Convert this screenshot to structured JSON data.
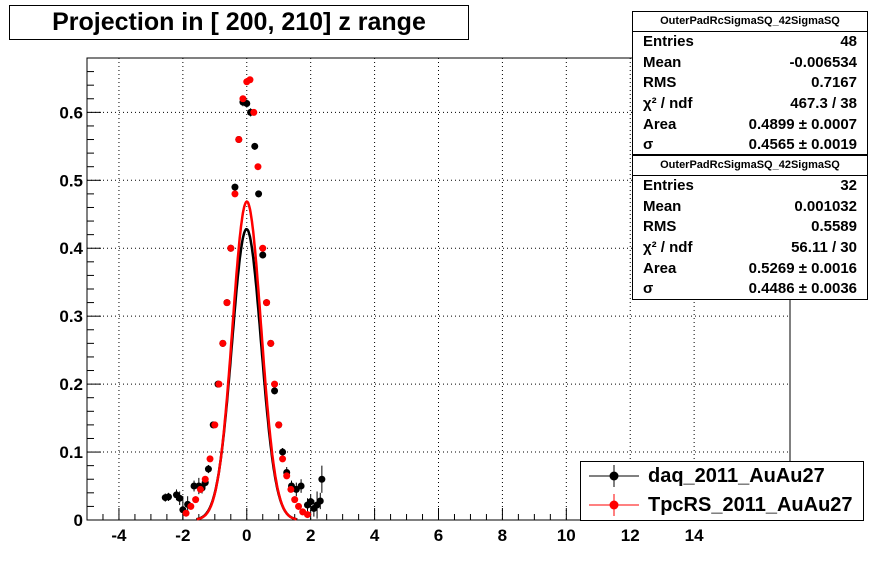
{
  "title": "Projection in [ 200, 210] z range",
  "stats_boxes": [
    {
      "header": "OuterPadRcSigmaSQ_42SigmaSQ",
      "rows": [
        {
          "key": "Entries",
          "value": "48"
        },
        {
          "key": "Mean",
          "value": "-0.006534"
        },
        {
          "key": "RMS",
          "value": "0.7167"
        },
        {
          "key": "χ² / ndf",
          "value": "467.3 / 38"
        },
        {
          "key": "Area",
          "value": "0.4899 ± 0.0007"
        },
        {
          "key": "σ",
          "value": "0.4565 ± 0.0019"
        }
      ]
    },
    {
      "header": "OuterPadRcSigmaSQ_42SigmaSQ",
      "rows": [
        {
          "key": "Entries",
          "value": "32"
        },
        {
          "key": "Mean",
          "value": "0.001032"
        },
        {
          "key": "RMS",
          "value": "0.5589"
        },
        {
          "key": "χ² / ndf",
          "value": "56.11 / 30"
        },
        {
          "key": "Area",
          "value": "0.5269 ± 0.0016"
        },
        {
          "key": "σ",
          "value": "0.4486 ± 0.0036"
        }
      ]
    }
  ],
  "legend": [
    {
      "label": "daq_2011_AuAu27",
      "color": "#000000"
    },
    {
      "label": "TpcRS_2011_AuAu27",
      "color": "#ff0000"
    }
  ],
  "chart_data": {
    "type": "scatter",
    "xlim": [
      -5,
      17
    ],
    "ylim": [
      0,
      0.68
    ],
    "x_ticks": [
      -4,
      -2,
      0,
      2,
      4,
      6,
      8,
      10,
      12,
      14
    ],
    "y_ticks": [
      0,
      0.1,
      0.2,
      0.3,
      0.4,
      0.5,
      0.6
    ],
    "grid": true,
    "legend_position": "bottom-right",
    "series": [
      {
        "name": "daq_2011_AuAu27",
        "color": "#000000",
        "points": [
          {
            "x": -2.55,
            "y": 0.033,
            "e": 0.006
          },
          {
            "x": -2.45,
            "y": 0.034,
            "e": 0.006
          },
          {
            "x": -2.2,
            "y": 0.037,
            "e": 0.008
          },
          {
            "x": -2.1,
            "y": 0.032,
            "e": 0.01
          },
          {
            "x": -2.0,
            "y": 0.015,
            "e": 0.02
          },
          {
            "x": -1.85,
            "y": 0.023,
            "e": 0.012
          },
          {
            "x": -1.65,
            "y": 0.05,
            "e": 0.008
          },
          {
            "x": -1.5,
            "y": 0.05,
            "e": 0.012
          },
          {
            "x": -1.4,
            "y": 0.047,
            "e": 0.008
          },
          {
            "x": -1.3,
            "y": 0.055,
            "e": 0.006
          },
          {
            "x": -1.2,
            "y": 0.075,
            "e": 0.006
          },
          {
            "x": -1.05,
            "y": 0.14,
            "e": 0.005
          },
          {
            "x": -0.9,
            "y": 0.2,
            "e": 0.005
          },
          {
            "x": -0.75,
            "y": 0.26,
            "e": 0.005
          },
          {
            "x": -0.62,
            "y": 0.32,
            "e": 0.005
          },
          {
            "x": -0.5,
            "y": 0.4,
            "e": 0.005
          },
          {
            "x": -0.37,
            "y": 0.49,
            "e": 0.005
          },
          {
            "x": -0.25,
            "y": 0.56,
            "e": 0.005
          },
          {
            "x": -0.12,
            "y": 0.615,
            "e": 0.006
          },
          {
            "x": 0.0,
            "y": 0.613,
            "e": 0.006
          },
          {
            "x": 0.12,
            "y": 0.6,
            "e": 0.006
          },
          {
            "x": 0.25,
            "y": 0.55,
            "e": 0.005
          },
          {
            "x": 0.37,
            "y": 0.48,
            "e": 0.005
          },
          {
            "x": 0.5,
            "y": 0.39,
            "e": 0.005
          },
          {
            "x": 0.62,
            "y": 0.32,
            "e": 0.005
          },
          {
            "x": 0.75,
            "y": 0.26,
            "e": 0.005
          },
          {
            "x": 0.87,
            "y": 0.19,
            "e": 0.005
          },
          {
            "x": 1.0,
            "y": 0.14,
            "e": 0.005
          },
          {
            "x": 1.12,
            "y": 0.1,
            "e": 0.006
          },
          {
            "x": 1.25,
            "y": 0.07,
            "e": 0.008
          },
          {
            "x": 1.4,
            "y": 0.05,
            "e": 0.008
          },
          {
            "x": 1.55,
            "y": 0.045,
            "e": 0.01
          },
          {
            "x": 1.7,
            "y": 0.05,
            "e": 0.01
          },
          {
            "x": 1.9,
            "y": 0.022,
            "e": 0.01
          },
          {
            "x": 2.0,
            "y": 0.027,
            "e": 0.01
          },
          {
            "x": 2.1,
            "y": 0.017,
            "e": 0.012
          },
          {
            "x": 2.2,
            "y": 0.022,
            "e": 0.02
          },
          {
            "x": 2.3,
            "y": 0.028,
            "e": 0.012
          },
          {
            "x": 2.35,
            "y": 0.06,
            "e": 0.02
          }
        ],
        "fit": {
          "area": 0.4899,
          "sigma": 0.4565,
          "mean": -0.006534
        }
      },
      {
        "name": "TpcRS_2011_AuAu27",
        "color": "#ff0000",
        "points": [
          {
            "x": -1.9,
            "y": 0.01,
            "e": 0.005
          },
          {
            "x": -1.75,
            "y": 0.02,
            "e": 0.005
          },
          {
            "x": -1.6,
            "y": 0.03,
            "e": 0.005
          },
          {
            "x": -1.45,
            "y": 0.045,
            "e": 0.005
          },
          {
            "x": -1.3,
            "y": 0.06,
            "e": 0.004
          },
          {
            "x": -1.15,
            "y": 0.09,
            "e": 0.004
          },
          {
            "x": -1.0,
            "y": 0.14,
            "e": 0.004
          },
          {
            "x": -0.87,
            "y": 0.2,
            "e": 0.004
          },
          {
            "x": -0.75,
            "y": 0.26,
            "e": 0.004
          },
          {
            "x": -0.62,
            "y": 0.32,
            "e": 0.004
          },
          {
            "x": -0.5,
            "y": 0.4,
            "e": 0.004
          },
          {
            "x": -0.37,
            "y": 0.48,
            "e": 0.004
          },
          {
            "x": -0.25,
            "y": 0.56,
            "e": 0.004
          },
          {
            "x": -0.12,
            "y": 0.62,
            "e": 0.004
          },
          {
            "x": 0.0,
            "y": 0.645,
            "e": 0.004
          },
          {
            "x": 0.1,
            "y": 0.648,
            "e": 0.004
          },
          {
            "x": 0.22,
            "y": 0.6,
            "e": 0.004
          },
          {
            "x": 0.35,
            "y": 0.52,
            "e": 0.004
          },
          {
            "x": 0.5,
            "y": 0.4,
            "e": 0.004
          },
          {
            "x": 0.62,
            "y": 0.32,
            "e": 0.004
          },
          {
            "x": 0.75,
            "y": 0.26,
            "e": 0.004
          },
          {
            "x": 0.87,
            "y": 0.2,
            "e": 0.004
          },
          {
            "x": 1.0,
            "y": 0.14,
            "e": 0.004
          },
          {
            "x": 1.12,
            "y": 0.09,
            "e": 0.004
          },
          {
            "x": 1.25,
            "y": 0.065,
            "e": 0.004
          },
          {
            "x": 1.38,
            "y": 0.045,
            "e": 0.004
          },
          {
            "x": 1.5,
            "y": 0.03,
            "e": 0.005
          },
          {
            "x": 1.62,
            "y": 0.02,
            "e": 0.005
          },
          {
            "x": 1.75,
            "y": 0.012,
            "e": 0.005
          },
          {
            "x": 1.9,
            "y": 0.008,
            "e": 0.005
          }
        ],
        "fit": {
          "area": 0.5269,
          "sigma": 0.4486,
          "mean": 0.001032
        }
      }
    ]
  }
}
